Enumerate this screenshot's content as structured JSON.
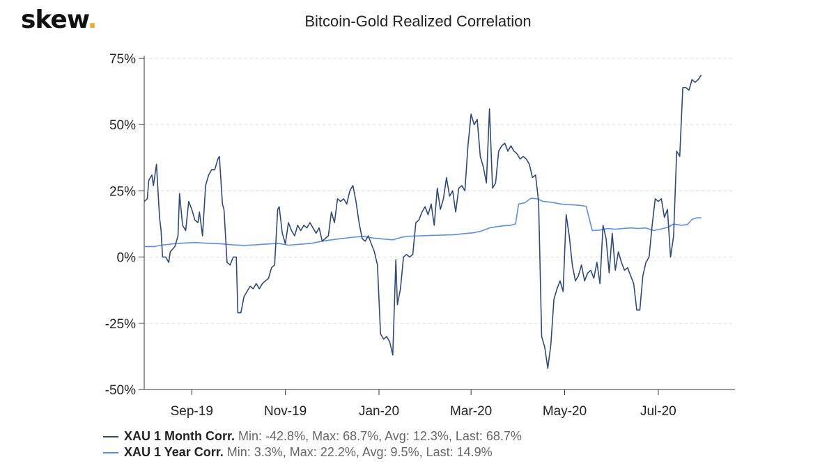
{
  "logo": {
    "text": "skew",
    "dot": "."
  },
  "chart_data": {
    "type": "line",
    "title": "Bitcoin-Gold Realized Correlation",
    "xlabel": "",
    "ylabel": "",
    "x_range": [
      "2019-08-01",
      "2020-08-20"
    ],
    "x_ticks": [
      {
        "date": "2019-09-01",
        "label": "Sep-19"
      },
      {
        "date": "2019-11-01",
        "label": "Nov-19"
      },
      {
        "date": "2020-01-01",
        "label": "Jan-20"
      },
      {
        "date": "2020-03-01",
        "label": "Mar-20"
      },
      {
        "date": "2020-05-01",
        "label": "May-20"
      },
      {
        "date": "2020-07-01",
        "label": "Jul-20"
      }
    ],
    "ylim": [
      -50,
      75
    ],
    "y_ticks": [
      {
        "value": 75,
        "label": "75%"
      },
      {
        "value": 50,
        "label": "50%"
      },
      {
        "value": 25,
        "label": "25%"
      },
      {
        "value": 0,
        "label": "0%"
      },
      {
        "value": -25,
        "label": "-25%"
      },
      {
        "value": -50,
        "label": "-50%"
      }
    ],
    "grid": "horizontal dashed",
    "legend_position": "bottom-left",
    "series": [
      {
        "name": "XAU 1 Month Corr.",
        "stats": "Min: -42.8%, Max: 68.7%, Avg: 12.3%, Last: 68.7%",
        "color": "#2e4a7d",
        "points": [
          [
            "2019-08-01",
            21
          ],
          [
            "2019-08-03",
            22
          ],
          [
            "2019-08-04",
            29
          ],
          [
            "2019-08-06",
            31
          ],
          [
            "2019-08-07",
            27
          ],
          [
            "2019-08-09",
            35
          ],
          [
            "2019-08-11",
            15
          ],
          [
            "2019-08-12",
            10
          ],
          [
            "2019-08-13",
            0
          ],
          [
            "2019-08-15",
            0
          ],
          [
            "2019-08-17",
            -2
          ],
          [
            "2019-08-18",
            2
          ],
          [
            "2019-08-21",
            4
          ],
          [
            "2019-08-23",
            8
          ],
          [
            "2019-08-24",
            24
          ],
          [
            "2019-08-26",
            12
          ],
          [
            "2019-08-28",
            10
          ],
          [
            "2019-08-30",
            21
          ],
          [
            "2019-09-01",
            18
          ],
          [
            "2019-09-03",
            14
          ],
          [
            "2019-09-05",
            13
          ],
          [
            "2019-09-06",
            17
          ],
          [
            "2019-09-08",
            8
          ],
          [
            "2019-09-10",
            27
          ],
          [
            "2019-09-12",
            31
          ],
          [
            "2019-09-14",
            33
          ],
          [
            "2019-09-16",
            33
          ],
          [
            "2019-09-18",
            37
          ],
          [
            "2019-09-19",
            38
          ],
          [
            "2019-09-21",
            20
          ],
          [
            "2019-09-22",
            18
          ],
          [
            "2019-09-24",
            -2
          ],
          [
            "2019-09-26",
            -3
          ],
          [
            "2019-09-28",
            0
          ],
          [
            "2019-09-30",
            0
          ],
          [
            "2019-10-01",
            -21
          ],
          [
            "2019-10-03",
            -21
          ],
          [
            "2019-10-05",
            -15
          ],
          [
            "2019-10-07",
            -13
          ],
          [
            "2019-10-09",
            -11
          ],
          [
            "2019-10-11",
            -12
          ],
          [
            "2019-10-13",
            -10
          ],
          [
            "2019-10-15",
            -12
          ],
          [
            "2019-10-17",
            -10
          ],
          [
            "2019-10-19",
            -9
          ],
          [
            "2019-10-21",
            -8
          ],
          [
            "2019-10-23",
            -4
          ],
          [
            "2019-10-25",
            -3
          ],
          [
            "2019-10-27",
            18
          ],
          [
            "2019-10-28",
            19
          ],
          [
            "2019-10-30",
            9
          ],
          [
            "2019-11-01",
            5
          ],
          [
            "2019-11-03",
            13
          ],
          [
            "2019-11-05",
            10
          ],
          [
            "2019-11-07",
            8
          ],
          [
            "2019-11-09",
            12
          ],
          [
            "2019-11-11",
            10
          ],
          [
            "2019-11-13",
            12
          ],
          [
            "2019-11-15",
            11
          ],
          [
            "2019-11-17",
            13
          ],
          [
            "2019-11-19",
            11
          ],
          [
            "2019-11-21",
            9
          ],
          [
            "2019-11-23",
            11
          ],
          [
            "2019-11-25",
            6
          ],
          [
            "2019-11-27",
            7
          ],
          [
            "2019-11-29",
            8
          ],
          [
            "2019-12-01",
            17
          ],
          [
            "2019-12-03",
            13
          ],
          [
            "2019-12-05",
            22
          ],
          [
            "2019-12-07",
            21
          ],
          [
            "2019-12-09",
            22
          ],
          [
            "2019-12-11",
            20
          ],
          [
            "2019-12-13",
            25
          ],
          [
            "2019-12-15",
            27
          ],
          [
            "2019-12-17",
            21
          ],
          [
            "2019-12-19",
            13
          ],
          [
            "2019-12-21",
            7
          ],
          [
            "2019-12-23",
            6
          ],
          [
            "2019-12-25",
            8
          ],
          [
            "2019-12-27",
            5
          ],
          [
            "2019-12-29",
            2
          ],
          [
            "2019-12-31",
            -3
          ],
          [
            "2020-01-02",
            -29
          ],
          [
            "2020-01-04",
            -31
          ],
          [
            "2020-01-06",
            -30
          ],
          [
            "2020-01-08",
            -32
          ],
          [
            "2020-01-10",
            -37
          ],
          [
            "2020-01-12",
            -1
          ],
          [
            "2020-01-13",
            -18
          ],
          [
            "2020-01-15",
            -12
          ],
          [
            "2020-01-17",
            0
          ],
          [
            "2020-01-19",
            1
          ],
          [
            "2020-01-21",
            0
          ],
          [
            "2020-01-23",
            1
          ],
          [
            "2020-01-25",
            13
          ],
          [
            "2020-01-27",
            14
          ],
          [
            "2020-01-29",
            17
          ],
          [
            "2020-01-31",
            19
          ],
          [
            "2020-02-02",
            16
          ],
          [
            "2020-02-04",
            20
          ],
          [
            "2020-02-06",
            12
          ],
          [
            "2020-02-08",
            26
          ],
          [
            "2020-02-10",
            18
          ],
          [
            "2020-02-12",
            22
          ],
          [
            "2020-02-14",
            30
          ],
          [
            "2020-02-16",
            23
          ],
          [
            "2020-02-18",
            25
          ],
          [
            "2020-02-20",
            17
          ],
          [
            "2020-02-22",
            26
          ],
          [
            "2020-02-24",
            27
          ],
          [
            "2020-02-26",
            25
          ],
          [
            "2020-02-28",
            42
          ],
          [
            "2020-03-01",
            54
          ],
          [
            "2020-03-03",
            50
          ],
          [
            "2020-03-05",
            52
          ],
          [
            "2020-03-07",
            38
          ],
          [
            "2020-03-09",
            34
          ],
          [
            "2020-03-11",
            28
          ],
          [
            "2020-03-13",
            56
          ],
          [
            "2020-03-15",
            26
          ],
          [
            "2020-03-17",
            28
          ],
          [
            "2020-03-19",
            40
          ],
          [
            "2020-03-21",
            42
          ],
          [
            "2020-03-23",
            43
          ],
          [
            "2020-03-25",
            40
          ],
          [
            "2020-03-27",
            42
          ],
          [
            "2020-03-29",
            40
          ],
          [
            "2020-03-31",
            39
          ],
          [
            "2020-04-02",
            37
          ],
          [
            "2020-04-04",
            38
          ],
          [
            "2020-04-06",
            37
          ],
          [
            "2020-04-08",
            35
          ],
          [
            "2020-04-10",
            30
          ],
          [
            "2020-04-12",
            31
          ],
          [
            "2020-04-14",
            21
          ],
          [
            "2020-04-16",
            -30
          ],
          [
            "2020-04-18",
            -34
          ],
          [
            "2020-04-20",
            -42
          ],
          [
            "2020-04-22",
            -33
          ],
          [
            "2020-04-24",
            -16
          ],
          [
            "2020-04-26",
            -12
          ],
          [
            "2020-04-28",
            -9
          ],
          [
            "2020-04-30",
            -13
          ],
          [
            "2020-05-02",
            16
          ],
          [
            "2020-05-04",
            8
          ],
          [
            "2020-05-06",
            -3
          ],
          [
            "2020-05-08",
            -9
          ],
          [
            "2020-05-10",
            -7
          ],
          [
            "2020-05-12",
            -3
          ],
          [
            "2020-05-14",
            -9
          ],
          [
            "2020-05-16",
            -6
          ],
          [
            "2020-05-18",
            -5
          ],
          [
            "2020-05-20",
            -8
          ],
          [
            "2020-05-22",
            -2
          ],
          [
            "2020-05-24",
            -10
          ],
          [
            "2020-05-26",
            12
          ],
          [
            "2020-05-28",
            7
          ],
          [
            "2020-05-30",
            -6
          ],
          [
            "2020-06-01",
            9
          ],
          [
            "2020-06-03",
            -5
          ],
          [
            "2020-06-05",
            2
          ],
          [
            "2020-06-07",
            -2
          ],
          [
            "2020-06-09",
            -5
          ],
          [
            "2020-06-11",
            -4
          ],
          [
            "2020-06-13",
            -7
          ],
          [
            "2020-06-15",
            -10
          ],
          [
            "2020-06-17",
            -20
          ],
          [
            "2020-06-19",
            -20
          ],
          [
            "2020-06-21",
            -7
          ],
          [
            "2020-06-23",
            -2
          ],
          [
            "2020-06-25",
            0
          ],
          [
            "2020-06-27",
            12
          ],
          [
            "2020-06-29",
            22
          ],
          [
            "2020-07-01",
            21
          ],
          [
            "2020-07-03",
            22
          ],
          [
            "2020-07-05",
            15
          ],
          [
            "2020-07-07",
            18
          ],
          [
            "2020-07-09",
            0
          ],
          [
            "2020-07-11",
            8
          ],
          [
            "2020-07-13",
            40
          ],
          [
            "2020-07-15",
            38
          ],
          [
            "2020-07-17",
            64
          ],
          [
            "2020-07-19",
            64
          ],
          [
            "2020-07-21",
            63
          ],
          [
            "2020-07-23",
            67
          ],
          [
            "2020-07-25",
            66
          ],
          [
            "2020-07-27",
            67
          ],
          [
            "2020-07-29",
            68.7
          ]
        ]
      },
      {
        "name": "XAU 1 Year Corr.",
        "stats": "Min: 3.3%, Max: 22.2%, Avg: 9.5%, Last: 14.9%",
        "color": "#5b8ee6",
        "points": [
          [
            "2019-08-01",
            4
          ],
          [
            "2019-08-08",
            4
          ],
          [
            "2019-08-12",
            4.5
          ],
          [
            "2019-08-20",
            5
          ],
          [
            "2019-08-27",
            5.3
          ],
          [
            "2019-09-03",
            5.5
          ],
          [
            "2019-09-12",
            5.2
          ],
          [
            "2019-09-20",
            5
          ],
          [
            "2019-09-28",
            4.6
          ],
          [
            "2019-10-05",
            4.4
          ],
          [
            "2019-10-12",
            4.6
          ],
          [
            "2019-10-20",
            4.9
          ],
          [
            "2019-10-27",
            5.2
          ],
          [
            "2019-11-03",
            4.5
          ],
          [
            "2019-11-10",
            4.8
          ],
          [
            "2019-11-18",
            5.2
          ],
          [
            "2019-11-25",
            6
          ],
          [
            "2019-12-01",
            6.5
          ],
          [
            "2019-12-08",
            7
          ],
          [
            "2019-12-15",
            7.5
          ],
          [
            "2019-12-22",
            7.8
          ],
          [
            "2019-12-28",
            7.2
          ],
          [
            "2020-01-04",
            6.8
          ],
          [
            "2020-01-10",
            6.5
          ],
          [
            "2020-01-16",
            7.5
          ],
          [
            "2020-01-22",
            7.9
          ],
          [
            "2020-01-28",
            8
          ],
          [
            "2020-02-04",
            8.2
          ],
          [
            "2020-02-11",
            8.3
          ],
          [
            "2020-02-18",
            8.4
          ],
          [
            "2020-02-25",
            8.8
          ],
          [
            "2020-03-03",
            9.2
          ],
          [
            "2020-03-08",
            9.9
          ],
          [
            "2020-03-13",
            11
          ],
          [
            "2020-03-18",
            11.5
          ],
          [
            "2020-03-22",
            11.8
          ],
          [
            "2020-03-27",
            12
          ],
          [
            "2020-03-30",
            12.5
          ],
          [
            "2020-04-01",
            20
          ],
          [
            "2020-04-05",
            20.5
          ],
          [
            "2020-04-09",
            22.2
          ],
          [
            "2020-04-13",
            22
          ],
          [
            "2020-04-17",
            21
          ],
          [
            "2020-04-21",
            20.8
          ],
          [
            "2020-04-25",
            20.4
          ],
          [
            "2020-04-29",
            20
          ],
          [
            "2020-05-03",
            19.8
          ],
          [
            "2020-05-07",
            19.7
          ],
          [
            "2020-05-11",
            19.5
          ],
          [
            "2020-05-15",
            19.2
          ],
          [
            "2020-05-19",
            10
          ],
          [
            "2020-05-24",
            10.2
          ],
          [
            "2020-05-29",
            10.8
          ],
          [
            "2020-06-03",
            10.5
          ],
          [
            "2020-06-08",
            10.8
          ],
          [
            "2020-06-13",
            11
          ],
          [
            "2020-06-18",
            10.8
          ],
          [
            "2020-06-23",
            11
          ],
          [
            "2020-06-28",
            10
          ],
          [
            "2020-07-02",
            10.5
          ],
          [
            "2020-07-07",
            11.2
          ],
          [
            "2020-07-11",
            12.5
          ],
          [
            "2020-07-16",
            12
          ],
          [
            "2020-07-20",
            12.3
          ],
          [
            "2020-07-23",
            14.2
          ],
          [
            "2020-07-26",
            14.8
          ],
          [
            "2020-07-29",
            14.9
          ]
        ]
      }
    ]
  }
}
